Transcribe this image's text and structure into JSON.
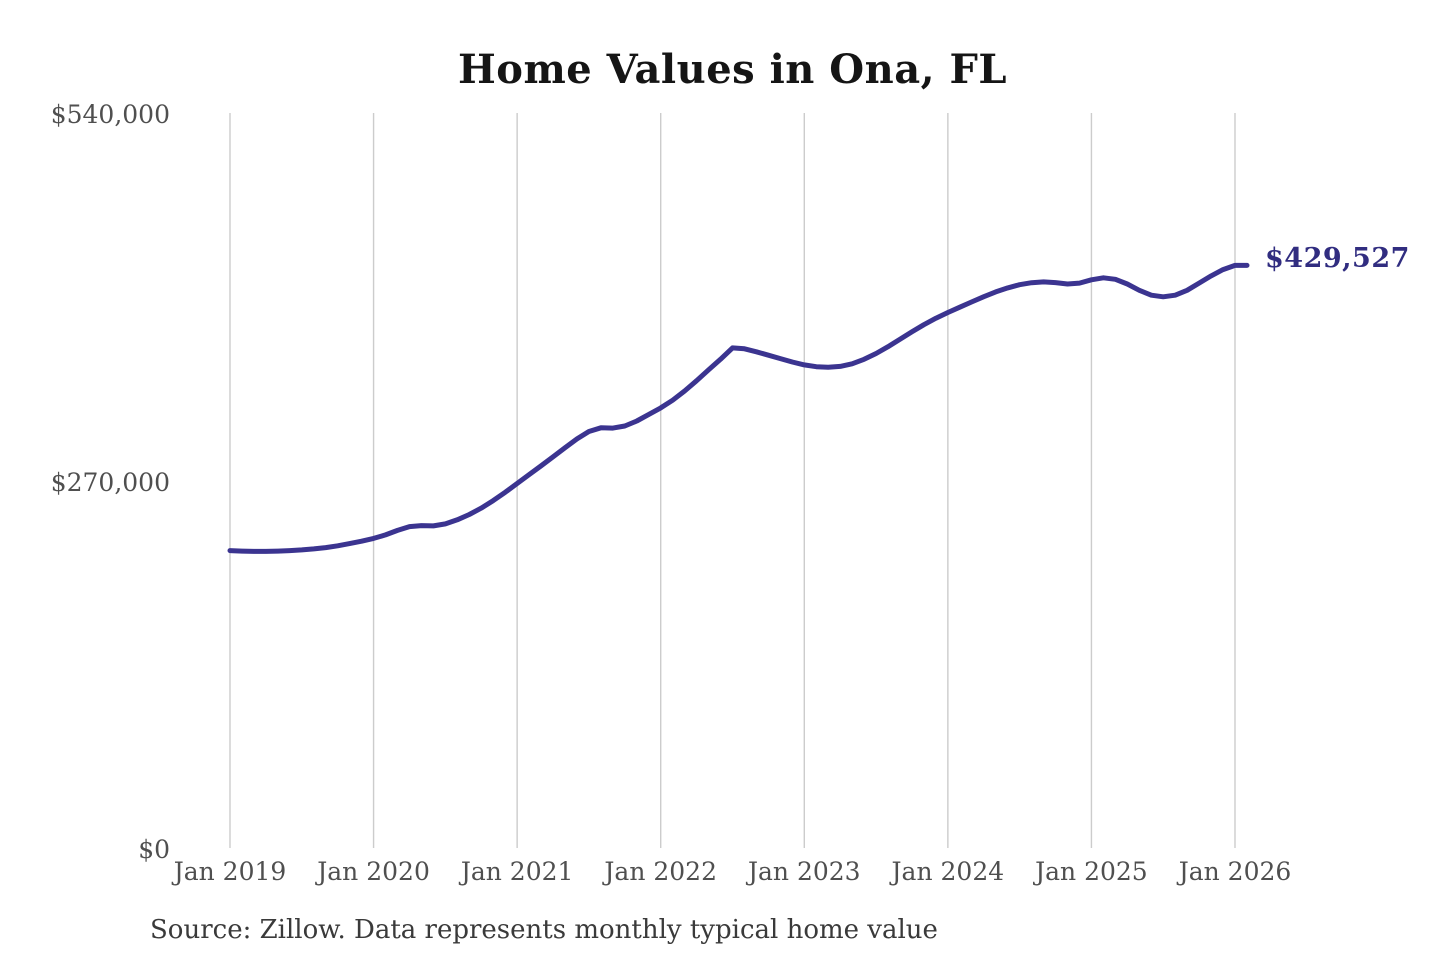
{
  "page": {
    "background_color": "#ffffff"
  },
  "chart_data": {
    "type": "line",
    "title": "Home Values in Ona, FL",
    "source": "Source: Zillow. Data represents monthly typical home value",
    "latest_value_label": "$429,527",
    "line_color": "#3b3490",
    "latest_label_color": "#312d80",
    "gridline_color": "#cccccc",
    "axis_label_color": "#4f4f4f",
    "grid": "vertical-only",
    "legend": "none",
    "x_start": "Jan 2019",
    "frequency": "monthly",
    "x_tick_labels": [
      "Jan 2019",
      "Jan 2020",
      "Jan 2021",
      "Jan 2022",
      "Jan 2023",
      "Jan 2024",
      "Jan 2025",
      "Jan 2026"
    ],
    "x_tick_month_indices": [
      0,
      12,
      24,
      36,
      48,
      60,
      72,
      84
    ],
    "y_ticks": [
      {
        "label": "$0",
        "value": 0
      },
      {
        "label": "$270,000",
        "value": 270000
      },
      {
        "label": "$540,000",
        "value": 540000
      }
    ],
    "ylim": [
      0,
      540000
    ],
    "values": [
      220000,
      219600,
      219400,
      219400,
      219600,
      220000,
      220500,
      221200,
      222200,
      223500,
      225100,
      226900,
      228900,
      231500,
      234800,
      237600,
      238300,
      238100,
      239600,
      242600,
      246500,
      251200,
      256700,
      262800,
      269300,
      275800,
      282300,
      288800,
      295500,
      302000,
      307500,
      310200,
      310000,
      311500,
      315200,
      320000,
      324800,
      330500,
      337200,
      344800,
      352800,
      360500,
      368900,
      368200,
      366000,
      363500,
      361000,
      358500,
      356400,
      355100,
      354700,
      355300,
      357200,
      360500,
      364800,
      369800,
      375200,
      380700,
      385900,
      390700,
      394900,
      398800,
      402700,
      406500,
      410000,
      413000,
      415300,
      416800,
      417400,
      416900,
      415800,
      416500,
      418900,
      420400,
      419300,
      415800,
      411200,
      407600,
      406400,
      407600,
      411200,
      416500,
      421800,
      426400,
      429527
    ]
  }
}
